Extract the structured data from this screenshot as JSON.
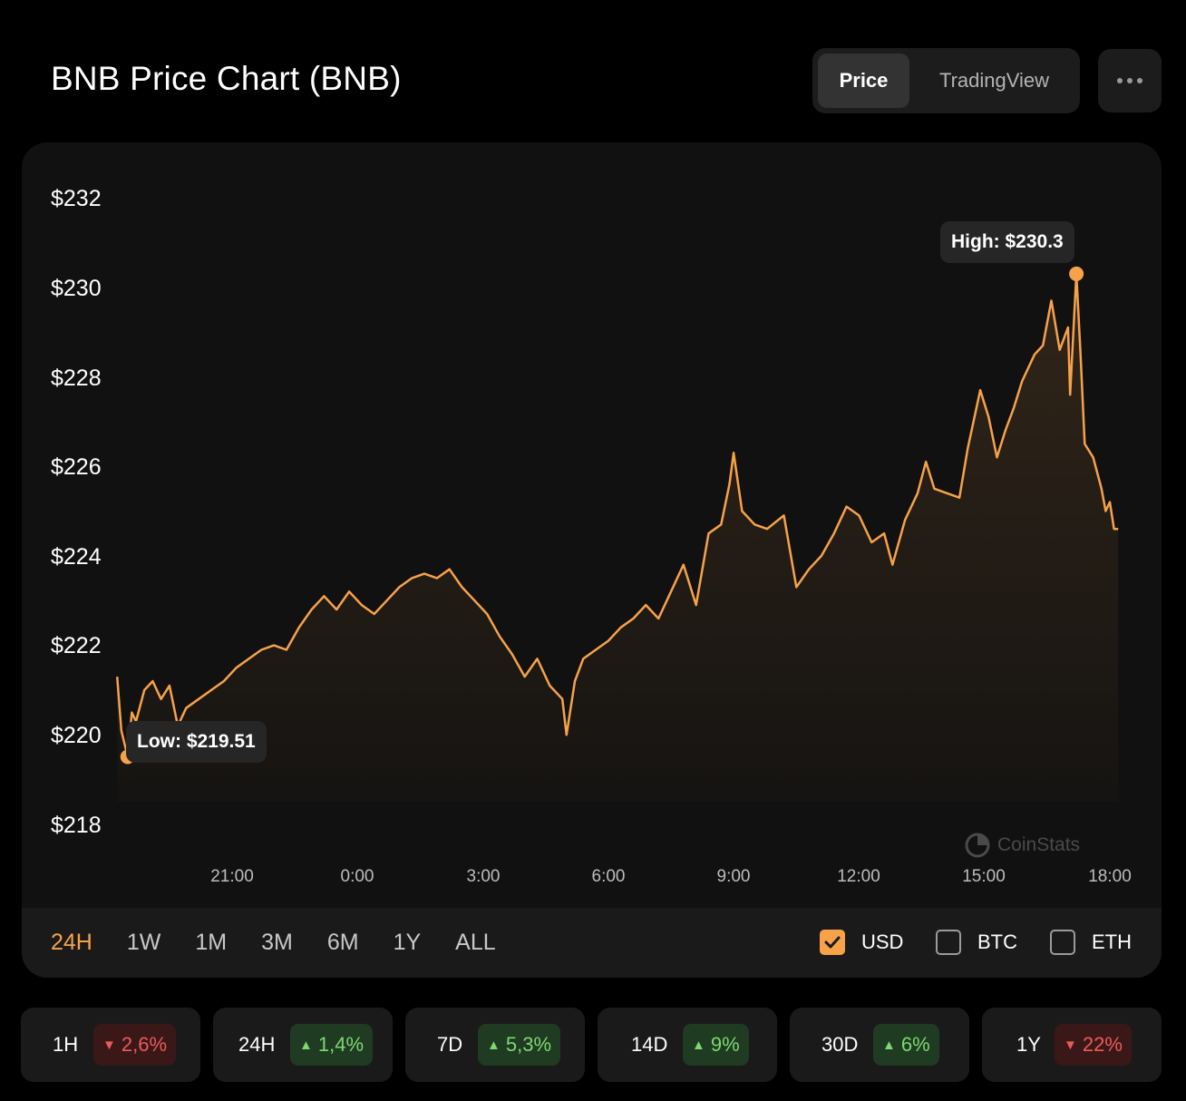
{
  "header": {
    "title": "BNB Price Chart (BNB)",
    "tabs": [
      "Price",
      "TradingView"
    ],
    "active_tab": "Price"
  },
  "colors": {
    "accent": "#f7a24a",
    "up": "#7dd870",
    "down": "#ec5a5a"
  },
  "chart_data": {
    "type": "line",
    "title": "BNB Price Chart (BNB)",
    "series_name": "BNB price (USD)",
    "y_tick_labels": [
      "$232",
      "$230",
      "$228",
      "$226",
      "$224",
      "$222",
      "$220",
      "$218"
    ],
    "y_ticks": [
      232,
      230,
      228,
      226,
      224,
      222,
      220,
      218
    ],
    "ylim": [
      218,
      232
    ],
    "x_tick_labels": [
      "21:00",
      "0:00",
      "3:00",
      "6:00",
      "9:00",
      "12:00",
      "15:00",
      "18:00"
    ],
    "x_ticks": [
      21,
      24,
      27,
      30,
      33,
      36,
      39,
      42
    ],
    "xlim": [
      18.25,
      42.25
    ],
    "x_unit": "hours since 0:00 of the first day",
    "points": [
      [
        18.25,
        221.3
      ],
      [
        18.35,
        220.1
      ],
      [
        18.5,
        219.51
      ],
      [
        18.6,
        220.5
      ],
      [
        18.7,
        220.3
      ],
      [
        18.9,
        221.0
      ],
      [
        19.1,
        221.2
      ],
      [
        19.3,
        220.8
      ],
      [
        19.5,
        221.1
      ],
      [
        19.7,
        220.2
      ],
      [
        19.9,
        220.6
      ],
      [
        20.2,
        220.8
      ],
      [
        20.5,
        221.0
      ],
      [
        20.8,
        221.2
      ],
      [
        21.1,
        221.5
      ],
      [
        21.4,
        221.7
      ],
      [
        21.7,
        221.9
      ],
      [
        22.0,
        222.0
      ],
      [
        22.3,
        221.9
      ],
      [
        22.6,
        222.4
      ],
      [
        22.9,
        222.8
      ],
      [
        23.2,
        223.1
      ],
      [
        23.5,
        222.8
      ],
      [
        23.8,
        223.2
      ],
      [
        24.1,
        222.9
      ],
      [
        24.4,
        222.7
      ],
      [
        24.7,
        223.0
      ],
      [
        25.0,
        223.3
      ],
      [
        25.3,
        223.5
      ],
      [
        25.6,
        223.6
      ],
      [
        25.9,
        223.5
      ],
      [
        26.2,
        223.7
      ],
      [
        26.5,
        223.3
      ],
      [
        26.8,
        223.0
      ],
      [
        27.1,
        222.7
      ],
      [
        27.4,
        222.2
      ],
      [
        27.7,
        221.8
      ],
      [
        28.0,
        221.3
      ],
      [
        28.3,
        221.7
      ],
      [
        28.6,
        221.1
      ],
      [
        28.9,
        220.8
      ],
      [
        29.0,
        220.0
      ],
      [
        29.2,
        221.2
      ],
      [
        29.4,
        221.7
      ],
      [
        29.7,
        221.9
      ],
      [
        30.0,
        222.1
      ],
      [
        30.3,
        222.4
      ],
      [
        30.6,
        222.6
      ],
      [
        30.9,
        222.9
      ],
      [
        31.2,
        222.6
      ],
      [
        31.5,
        223.2
      ],
      [
        31.8,
        223.8
      ],
      [
        32.1,
        222.9
      ],
      [
        32.4,
        224.5
      ],
      [
        32.7,
        224.7
      ],
      [
        32.9,
        225.6
      ],
      [
        33.0,
        226.3
      ],
      [
        33.2,
        225.0
      ],
      [
        33.5,
        224.7
      ],
      [
        33.8,
        224.6
      ],
      [
        34.2,
        224.9
      ],
      [
        34.5,
        223.3
      ],
      [
        34.8,
        223.7
      ],
      [
        35.1,
        224.0
      ],
      [
        35.4,
        224.5
      ],
      [
        35.7,
        225.1
      ],
      [
        36.0,
        224.9
      ],
      [
        36.3,
        224.3
      ],
      [
        36.6,
        224.5
      ],
      [
        36.8,
        223.8
      ],
      [
        37.1,
        224.8
      ],
      [
        37.4,
        225.4
      ],
      [
        37.6,
        226.1
      ],
      [
        37.8,
        225.5
      ],
      [
        38.1,
        225.4
      ],
      [
        38.4,
        225.3
      ],
      [
        38.6,
        226.4
      ],
      [
        38.9,
        227.7
      ],
      [
        39.1,
        227.1
      ],
      [
        39.3,
        226.2
      ],
      [
        39.5,
        226.8
      ],
      [
        39.7,
        227.3
      ],
      [
        39.9,
        227.9
      ],
      [
        40.2,
        228.5
      ],
      [
        40.4,
        228.7
      ],
      [
        40.6,
        229.7
      ],
      [
        40.8,
        228.6
      ],
      [
        41.0,
        229.1
      ],
      [
        41.05,
        227.6
      ],
      [
        41.2,
        230.3
      ],
      [
        41.3,
        228.5
      ],
      [
        41.4,
        226.5
      ],
      [
        41.6,
        226.2
      ],
      [
        41.8,
        225.5
      ],
      [
        41.9,
        225.0
      ],
      [
        42.0,
        225.2
      ],
      [
        42.1,
        224.6
      ],
      [
        42.2,
        224.6
      ]
    ],
    "high": {
      "label": "High: $230.3",
      "x": 41.2,
      "y": 230.3
    },
    "low": {
      "label": "Low: $219.51",
      "x": 18.5,
      "y": 219.51
    },
    "grid": false,
    "watermark": "CoinStats"
  },
  "controls": {
    "ranges": [
      "24H",
      "1W",
      "1M",
      "3M",
      "6M",
      "1Y",
      "ALL"
    ],
    "active_range": "24H",
    "currencies": [
      {
        "label": "USD",
        "checked": true
      },
      {
        "label": "BTC",
        "checked": false
      },
      {
        "label": "ETH",
        "checked": false
      }
    ]
  },
  "stats": [
    {
      "period": "1H",
      "change": "2,6%",
      "direction": "down"
    },
    {
      "period": "24H",
      "change": "1,4%",
      "direction": "up"
    },
    {
      "period": "7D",
      "change": "5,3%",
      "direction": "up"
    },
    {
      "period": "14D",
      "change": "9%",
      "direction": "up"
    },
    {
      "period": "30D",
      "change": "6%",
      "direction": "up"
    },
    {
      "period": "1Y",
      "change": "22%",
      "direction": "down"
    }
  ]
}
